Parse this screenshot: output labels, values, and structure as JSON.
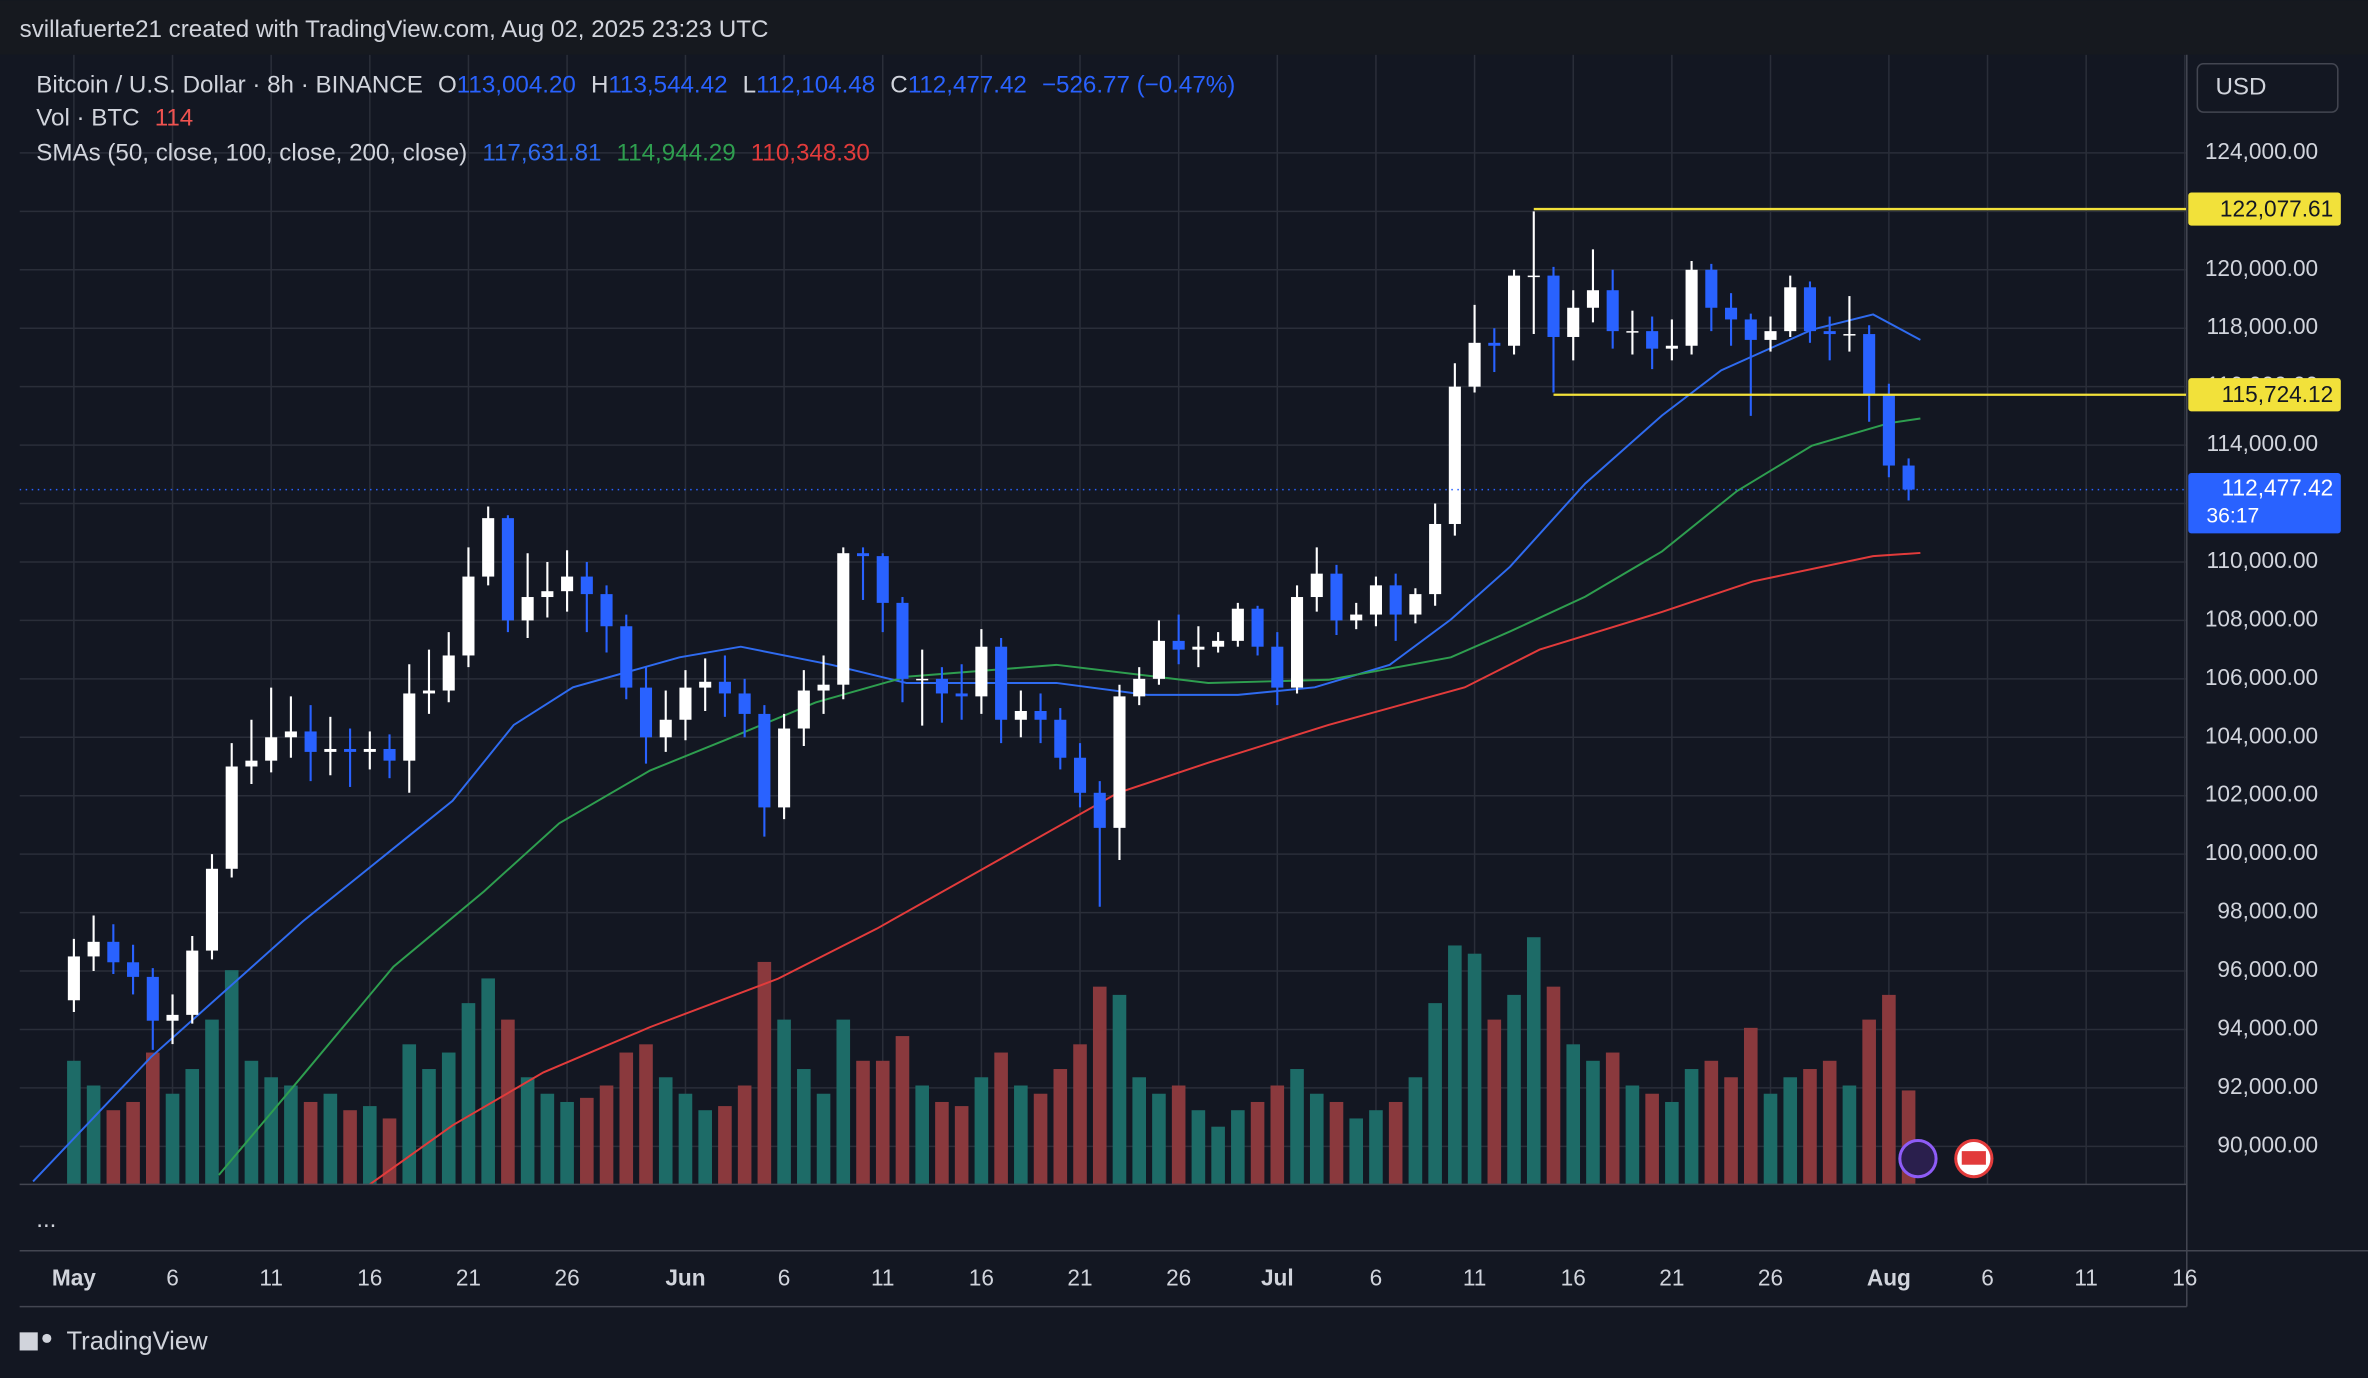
{
  "header": {
    "attribution": "svillafuerte21 created with TradingView.com, Aug 02, 2025 23:23 UTC",
    "symbol": "Bitcoin / U.S. Dollar · 8h · BINANCE",
    "ohlc": [
      {
        "key": "O",
        "value": "113,004.20"
      },
      {
        "key": "H",
        "value": "113,544.42"
      },
      {
        "key": "L",
        "value": "112,104.48"
      },
      {
        "key": "C",
        "value": "112,477.42"
      }
    ],
    "change": "−526.77 (−0.47%)",
    "volume_label": "Vol · BTC",
    "sma_label": "SMAs (50, close, 100, close, 200, close)",
    "sma_values": [
      "117,631.81",
      "114,944.29",
      "110,348.30"
    ],
    "currency": "USD",
    "more": "...",
    "brand": "TradingView"
  },
  "chart_data": {
    "type": "candlestick",
    "grid": true,
    "log_scale": false,
    "xlim": [
      -2.75,
      107.1
    ],
    "ylim": [
      88700,
      127360
    ],
    "xticks": [
      {
        "value": 0,
        "label": "May"
      },
      {
        "value": 5,
        "label": "6"
      },
      {
        "value": 10,
        "label": "11"
      },
      {
        "value": 15,
        "label": "16"
      },
      {
        "value": 20,
        "label": "21"
      },
      {
        "value": 25,
        "label": "26"
      },
      {
        "value": 31,
        "label": "Jun"
      },
      {
        "value": 36,
        "label": "6"
      },
      {
        "value": 41,
        "label": "11"
      },
      {
        "value": 46,
        "label": "16"
      },
      {
        "value": 51,
        "label": "21"
      },
      {
        "value": 56,
        "label": "26"
      },
      {
        "value": 61,
        "label": "Jul"
      },
      {
        "value": 66,
        "label": "6"
      },
      {
        "value": 71,
        "label": "11"
      },
      {
        "value": 76,
        "label": "16"
      },
      {
        "value": 81,
        "label": "21"
      },
      {
        "value": 86,
        "label": "26"
      },
      {
        "value": 92,
        "label": "Aug"
      },
      {
        "value": 97,
        "label": "6"
      },
      {
        "value": 102,
        "label": "11"
      },
      {
        "value": 107,
        "label": "16"
      }
    ],
    "yticks": [
      {
        "value": 90000,
        "label": "90,000.00"
      },
      {
        "value": 92000,
        "label": "92,000.00"
      },
      {
        "value": 94000,
        "label": "94,000.00"
      },
      {
        "value": 96000,
        "label": "96,000.00"
      },
      {
        "value": 98000,
        "label": "98,000.00"
      },
      {
        "value": 100000,
        "label": "100,000.00"
      },
      {
        "value": 102000,
        "label": "102,000.00"
      },
      {
        "value": 104000,
        "label": "104,000.00"
      },
      {
        "value": 106000,
        "label": "106,000.00"
      },
      {
        "value": 108000,
        "label": "108,000.00"
      },
      {
        "value": 110000,
        "label": "110,000.00"
      },
      {
        "value": 112000,
        "label": "112,000.00"
      },
      {
        "value": 114000,
        "label": "114,000.00"
      },
      {
        "value": 116000,
        "label": "116,000.00"
      },
      {
        "value": 118000,
        "label": "118,000.00"
      },
      {
        "value": 120000,
        "label": "120,000.00"
      },
      {
        "value": 122000,
        "label": "122,000.00"
      },
      {
        "value": 124000,
        "label": "124,000.00"
      }
    ],
    "up_color": "#ffffff",
    "down_color": "#2962ff",
    "x": [
      0,
      1,
      2,
      3,
      4,
      5,
      6,
      7,
      8,
      9,
      10,
      11,
      12,
      13,
      14,
      15,
      16,
      17,
      18,
      19,
      20,
      21,
      22,
      23,
      24,
      25,
      26,
      27,
      28,
      29,
      30,
      31,
      32,
      33,
      34,
      35,
      36,
      37,
      38,
      39,
      40,
      41,
      42,
      43,
      44,
      45,
      46,
      47,
      48,
      49,
      50,
      51,
      52,
      53,
      54,
      55,
      56,
      57,
      58,
      59,
      60,
      61,
      62,
      63,
      64,
      65,
      66,
      67,
      68,
      69,
      70,
      71,
      72,
      73,
      74,
      75,
      76,
      77,
      78,
      79,
      80,
      81,
      82,
      83,
      84,
      85,
      86,
      87,
      88,
      89,
      90,
      91,
      92,
      93
    ],
    "open": [
      95000,
      96500,
      97000,
      96300,
      95800,
      94300,
      94500,
      96700,
      99500,
      103000,
      103200,
      104000,
      104200,
      103500,
      103600,
      103500,
      103600,
      103200,
      105500,
      105600,
      106800,
      109500,
      111500,
      108000,
      108800,
      109000,
      109500,
      108900,
      107800,
      105700,
      104000,
      104600,
      105700,
      105900,
      105500,
      104800,
      101600,
      104300,
      105600,
      105800,
      110300,
      110200,
      108600,
      106000,
      106000,
      105500,
      105400,
      107100,
      104600,
      104900,
      104600,
      103300,
      102100,
      100900,
      105400,
      106000,
      107300,
      107000,
      107100,
      107300,
      108400,
      107100,
      105700,
      108800,
      109600,
      108000,
      108200,
      109200,
      108200,
      108900,
      111300,
      116000,
      117500,
      117400,
      119800,
      119800,
      117700,
      118700,
      119300,
      117900,
      117900,
      117300,
      117400,
      120000,
      118700,
      118300,
      117600,
      117900,
      119400,
      117900,
      117800,
      117800,
      115700,
      113300
    ],
    "high": [
      97100,
      97900,
      97600,
      96900,
      96100,
      95200,
      97200,
      100000,
      103800,
      104600,
      105700,
      105400,
      105100,
      104700,
      104300,
      104200,
      104100,
      106500,
      107000,
      107600,
      110500,
      111900,
      111600,
      110300,
      110000,
      110400,
      110000,
      109200,
      108200,
      106400,
      105600,
      106300,
      106700,
      106800,
      106000,
      105100,
      104800,
      106300,
      106800,
      110500,
      110500,
      110300,
      108800,
      107000,
      106400,
      106500,
      107700,
      107400,
      105600,
      105500,
      105000,
      103800,
      102500,
      105800,
      106400,
      108000,
      108200,
      107800,
      107600,
      108600,
      108500,
      107600,
      109200,
      110500,
      109900,
      108600,
      109500,
      109600,
      109100,
      112000,
      116800,
      118800,
      118000,
      120000,
      122000,
      120100,
      119300,
      120700,
      120000,
      118600,
      118400,
      118300,
      120300,
      120200,
      119200,
      118500,
      118400,
      119800,
      119600,
      118400,
      119100,
      118100,
      116100,
      113544.42
    ],
    "low": [
      94600,
      96000,
      95900,
      95200,
      93300,
      93500,
      94200,
      96400,
      99200,
      102400,
      102800,
      103300,
      102500,
      102700,
      102300,
      102900,
      102600,
      102100,
      104800,
      105200,
      106400,
      109200,
      107600,
      107400,
      108100,
      108300,
      107600,
      106900,
      105300,
      103100,
      103500,
      103900,
      104900,
      104700,
      104000,
      100600,
      101200,
      103700,
      104800,
      105300,
      108700,
      107600,
      105200,
      104400,
      104500,
      104600,
      104800,
      103800,
      104000,
      103800,
      102900,
      101600,
      98200,
      99800,
      105100,
      105800,
      106500,
      106400,
      106900,
      107100,
      106800,
      105100,
      105500,
      108300,
      107500,
      107700,
      107800,
      107300,
      107900,
      108500,
      110900,
      115800,
      116500,
      117100,
      117800,
      115800,
      116900,
      118200,
      117300,
      117100,
      116600,
      116900,
      117100,
      117900,
      117400,
      115000,
      117200,
      117700,
      117500,
      116900,
      117200,
      114800,
      112900,
      112104.48
    ],
    "close": [
      96500,
      97000,
      96300,
      95800,
      94300,
      94500,
      96700,
      99500,
      103000,
      103200,
      104000,
      104200,
      103500,
      103600,
      103500,
      103600,
      103200,
      105500,
      105600,
      106800,
      109500,
      111500,
      108000,
      108800,
      109000,
      109500,
      108900,
      107800,
      105700,
      104000,
      104600,
      105700,
      105900,
      105500,
      104800,
      101600,
      104300,
      105600,
      105800,
      110300,
      110200,
      108600,
      106000,
      106000,
      105500,
      105400,
      107100,
      104600,
      104900,
      104600,
      103300,
      102100,
      100900,
      105400,
      106000,
      107300,
      107000,
      107100,
      107300,
      108400,
      107100,
      105700,
      108800,
      109600,
      108000,
      108200,
      109200,
      108200,
      108900,
      111300,
      116000,
      117500,
      117400,
      119800,
      119800,
      117700,
      118700,
      119300,
      117900,
      117900,
      117300,
      117400,
      120000,
      118700,
      118300,
      117600,
      117900,
      119400,
      117900,
      117800,
      117800,
      115700,
      113300,
      112477.42
    ],
    "volume": {
      "vlim": [
        0,
        330
      ],
      "up_color": "#1d6b67",
      "down_color": "#8a393d",
      "values": [
        150,
        120,
        90,
        100,
        160,
        110,
        140,
        200,
        260,
        150,
        130,
        120,
        100,
        110,
        90,
        95,
        80,
        170,
        140,
        160,
        220,
        250,
        200,
        130,
        110,
        100,
        105,
        120,
        160,
        170,
        130,
        110,
        90,
        95,
        120,
        270,
        200,
        140,
        110,
        200,
        150,
        150,
        180,
        120,
        100,
        95,
        130,
        160,
        120,
        110,
        140,
        170,
        240,
        230,
        130,
        110,
        120,
        90,
        70,
        90,
        100,
        120,
        140,
        110,
        100,
        80,
        90,
        100,
        130,
        220,
        290,
        280,
        200,
        230,
        300,
        240,
        170,
        150,
        160,
        120,
        110,
        100,
        140,
        150,
        130,
        190,
        110,
        130,
        140,
        150,
        120,
        200,
        230,
        114
      ]
    },
    "sma": [
      {
        "color": "#2f6bf0",
        "x": [
          -2.07,
          3.9,
          11.6,
          19.2,
          22.3,
          25.3,
          30.7,
          33.8,
          38.4,
          42.2,
          49.8,
          54.4,
          59.0,
          62.9,
          66.7,
          69.8,
          72.8,
          76.6,
          80.5,
          83.5,
          88.1,
          91.2,
          93.6
        ],
        "values": [
          88800,
          93050,
          97700,
          101830,
          104420,
          105710,
          106740,
          107100,
          106480,
          105860,
          105860,
          105450,
          105450,
          105710,
          106480,
          108030,
          109840,
          112680,
          115010,
          116560,
          117950,
          118470,
          117600
        ]
      },
      {
        "color": "#2e9e4f",
        "x": [
          7.35,
          11.6,
          16.2,
          20.8,
          24.6,
          29.2,
          33.0,
          37.6,
          42.2,
          49.8,
          57.5,
          63.6,
          69.8,
          72.8,
          76.6,
          80.5,
          84.3,
          88.1,
          92.0,
          93.6
        ],
        "values": [
          89020,
          92430,
          96150,
          98730,
          101060,
          102860,
          103900,
          105190,
          106070,
          106480,
          105860,
          105970,
          106740,
          107620,
          108810,
          110360,
          112430,
          113980,
          114750,
          114910
        ]
      },
      {
        "color": "#e23b3b",
        "x": [
          15.0,
          19.2,
          23.8,
          29.2,
          35.7,
          40.7,
          46.8,
          52.9,
          57.5,
          63.6,
          70.5,
          74.3,
          80.5,
          85.1,
          91.2,
          93.6
        ],
        "values": [
          88700,
          90720,
          92530,
          94080,
          95740,
          97450,
          99770,
          102090,
          103130,
          104420,
          105710,
          107000,
          108290,
          109330,
          110200,
          110310
        ]
      }
    ],
    "levels": [
      {
        "value": 122077.61,
        "label": "122,077.61",
        "start": 74,
        "color": "#f2e13a"
      },
      {
        "value": 115724.12,
        "label": "115,724.12",
        "start": 75,
        "color": "#f2e13a"
      }
    ],
    "last_price": {
      "value": 112477.42,
      "label": "112,477.42",
      "countdown": "36:17",
      "color": "#2962ff"
    }
  }
}
